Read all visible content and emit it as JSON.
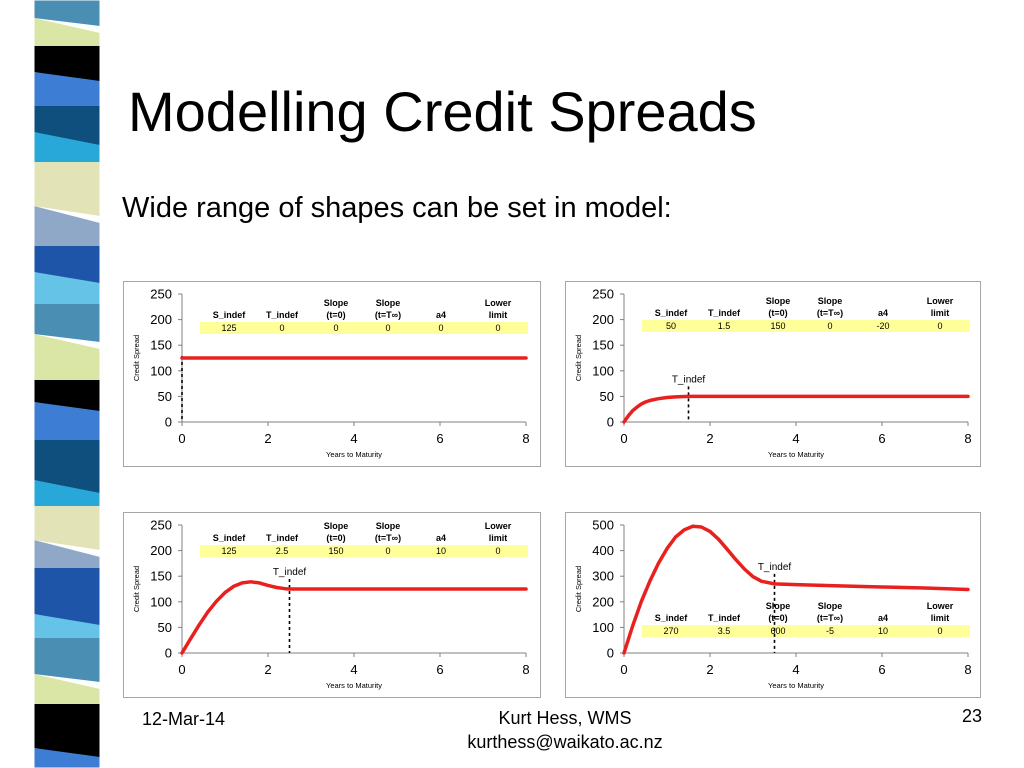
{
  "slide": {
    "title": "Modelling Credit Spreads",
    "bullet": "Wide range of shapes can be set in model:",
    "footer_date": "12-Mar-14",
    "footer_author_line1": "Kurt Hess, WMS",
    "footer_author_line2": "kurthess@waikato.ac.nz",
    "page_number": "23"
  },
  "colors": {
    "curve": "#e8211e",
    "table_fill": "#ffff99",
    "axis": "#808080",
    "box_border": "#a6a6a6",
    "stripe": [
      "#4a8fb3",
      "#d9e6a6",
      "#000000",
      "#3d7ed4",
      "#0f4f7d",
      "#27a8d8",
      "#e3e3b8",
      "#8fa8c8",
      "#1e55a8",
      "#66c3e8"
    ]
  },
  "chart_data": [
    {
      "type": "line",
      "xlabel": "Years to Maturity",
      "ylabel": "Credit Spread",
      "xlim": [
        0,
        8
      ],
      "ylim": [
        0,
        250
      ],
      "xticks": [
        0,
        2,
        4,
        6,
        8
      ],
      "yticks": [
        0,
        50,
        100,
        150,
        200,
        250
      ],
      "params": {
        "headers": [
          [
            "",
            "S_indef"
          ],
          [
            "",
            "T_indef"
          ],
          [
            "Slope",
            "(t=0)"
          ],
          [
            "Slope",
            "(t=T∞)"
          ],
          [
            "",
            "a4"
          ],
          [
            "Lower",
            "limit"
          ]
        ],
        "values": [
          "125",
          "0",
          "0",
          "0",
          "0",
          "0"
        ]
      },
      "t_indef_marker": {
        "x": 0,
        "label": ""
      },
      "x": [
        0,
        0.5,
        1,
        1.5,
        2,
        2.5,
        3,
        3.5,
        4,
        4.5,
        5,
        5.5,
        6,
        6.5,
        7,
        7.5,
        8
      ],
      "y": [
        125,
        125,
        125,
        125,
        125,
        125,
        125,
        125,
        125,
        125,
        125,
        125,
        125,
        125,
        125,
        125,
        125
      ]
    },
    {
      "type": "line",
      "xlabel": "Years to Maturity",
      "ylabel": "Credit Spread",
      "xlim": [
        0,
        8
      ],
      "ylim": [
        0,
        250
      ],
      "xticks": [
        0,
        2,
        4,
        6,
        8
      ],
      "yticks": [
        0,
        50,
        100,
        150,
        200,
        250
      ],
      "params": {
        "headers": [
          [
            "",
            "S_indef"
          ],
          [
            "",
            "T_indef"
          ],
          [
            "Slope",
            "(t=0)"
          ],
          [
            "Slope",
            "(t=T∞)"
          ],
          [
            "",
            "a4"
          ],
          [
            "Lower",
            "limit"
          ]
        ],
        "values": [
          "50",
          "1.5",
          "150",
          "0",
          "-20",
          "0"
        ]
      },
      "t_indef_marker": {
        "x": 1.5,
        "label": "T_indef"
      },
      "x": [
        0,
        0.1,
        0.2,
        0.3,
        0.4,
        0.5,
        0.6,
        0.8,
        1.0,
        1.2,
        1.5,
        2,
        3,
        4,
        5,
        6,
        7,
        8
      ],
      "y": [
        0,
        12,
        22,
        29,
        35,
        39,
        42,
        45.5,
        47.8,
        49,
        50,
        50,
        50,
        50,
        50,
        50,
        50,
        50
      ]
    },
    {
      "type": "line",
      "xlabel": "Years to Maturity",
      "ylabel": "Credit Spread",
      "xlim": [
        0,
        8
      ],
      "ylim": [
        0,
        250
      ],
      "xticks": [
        0,
        2,
        4,
        6,
        8
      ],
      "yticks": [
        0,
        50,
        100,
        150,
        200,
        250
      ],
      "params": {
        "headers": [
          [
            "",
            "S_indef"
          ],
          [
            "",
            "T_indef"
          ],
          [
            "Slope",
            "(t=0)"
          ],
          [
            "Slope",
            "(t=T∞)"
          ],
          [
            "",
            "a4"
          ],
          [
            "Lower",
            "limit"
          ]
        ],
        "values": [
          "125",
          "2.5",
          "150",
          "0",
          "10",
          "0"
        ]
      },
      "t_indef_marker": {
        "x": 2.5,
        "label": "T_indef"
      },
      "x": [
        0,
        0.2,
        0.4,
        0.6,
        0.8,
        1.0,
        1.2,
        1.4,
        1.6,
        1.8,
        2.0,
        2.2,
        2.4,
        2.5,
        3,
        4,
        5,
        6,
        7,
        8
      ],
      "y": [
        0,
        28,
        55,
        80,
        101,
        118,
        130,
        137,
        139,
        137,
        132,
        128,
        125.5,
        125,
        125,
        125,
        125,
        125,
        125,
        125
      ]
    },
    {
      "type": "line",
      "xlabel": "Years to Maturity",
      "ylabel": "Credit Spread",
      "xlim": [
        0,
        8
      ],
      "ylim": [
        0,
        500
      ],
      "xticks": [
        0,
        2,
        4,
        6,
        8
      ],
      "yticks": [
        0,
        100,
        200,
        300,
        400,
        500
      ],
      "params": {
        "headers": [
          [
            "",
            "S_indef"
          ],
          [
            "",
            "T_indef"
          ],
          [
            "Slope",
            "(t=0)"
          ],
          [
            "Slope",
            "(t=T∞)"
          ],
          [
            "",
            "a4"
          ],
          [
            "Lower",
            "limit"
          ]
        ],
        "values": [
          "270",
          "3.5",
          "600",
          "-5",
          "10",
          "0"
        ]
      },
      "t_indef_marker": {
        "x": 3.5,
        "label": "T_indef"
      },
      "x": [
        0,
        0.2,
        0.4,
        0.6,
        0.8,
        1.0,
        1.2,
        1.4,
        1.6,
        1.8,
        2.0,
        2.2,
        2.4,
        2.6,
        2.8,
        3.0,
        3.2,
        3.5,
        4,
        5,
        6,
        7,
        8
      ],
      "y": [
        0,
        105,
        200,
        280,
        350,
        408,
        453,
        481,
        495,
        492,
        475,
        444,
        405,
        365,
        328,
        298,
        280,
        270,
        267,
        262,
        258,
        254,
        248
      ]
    }
  ]
}
